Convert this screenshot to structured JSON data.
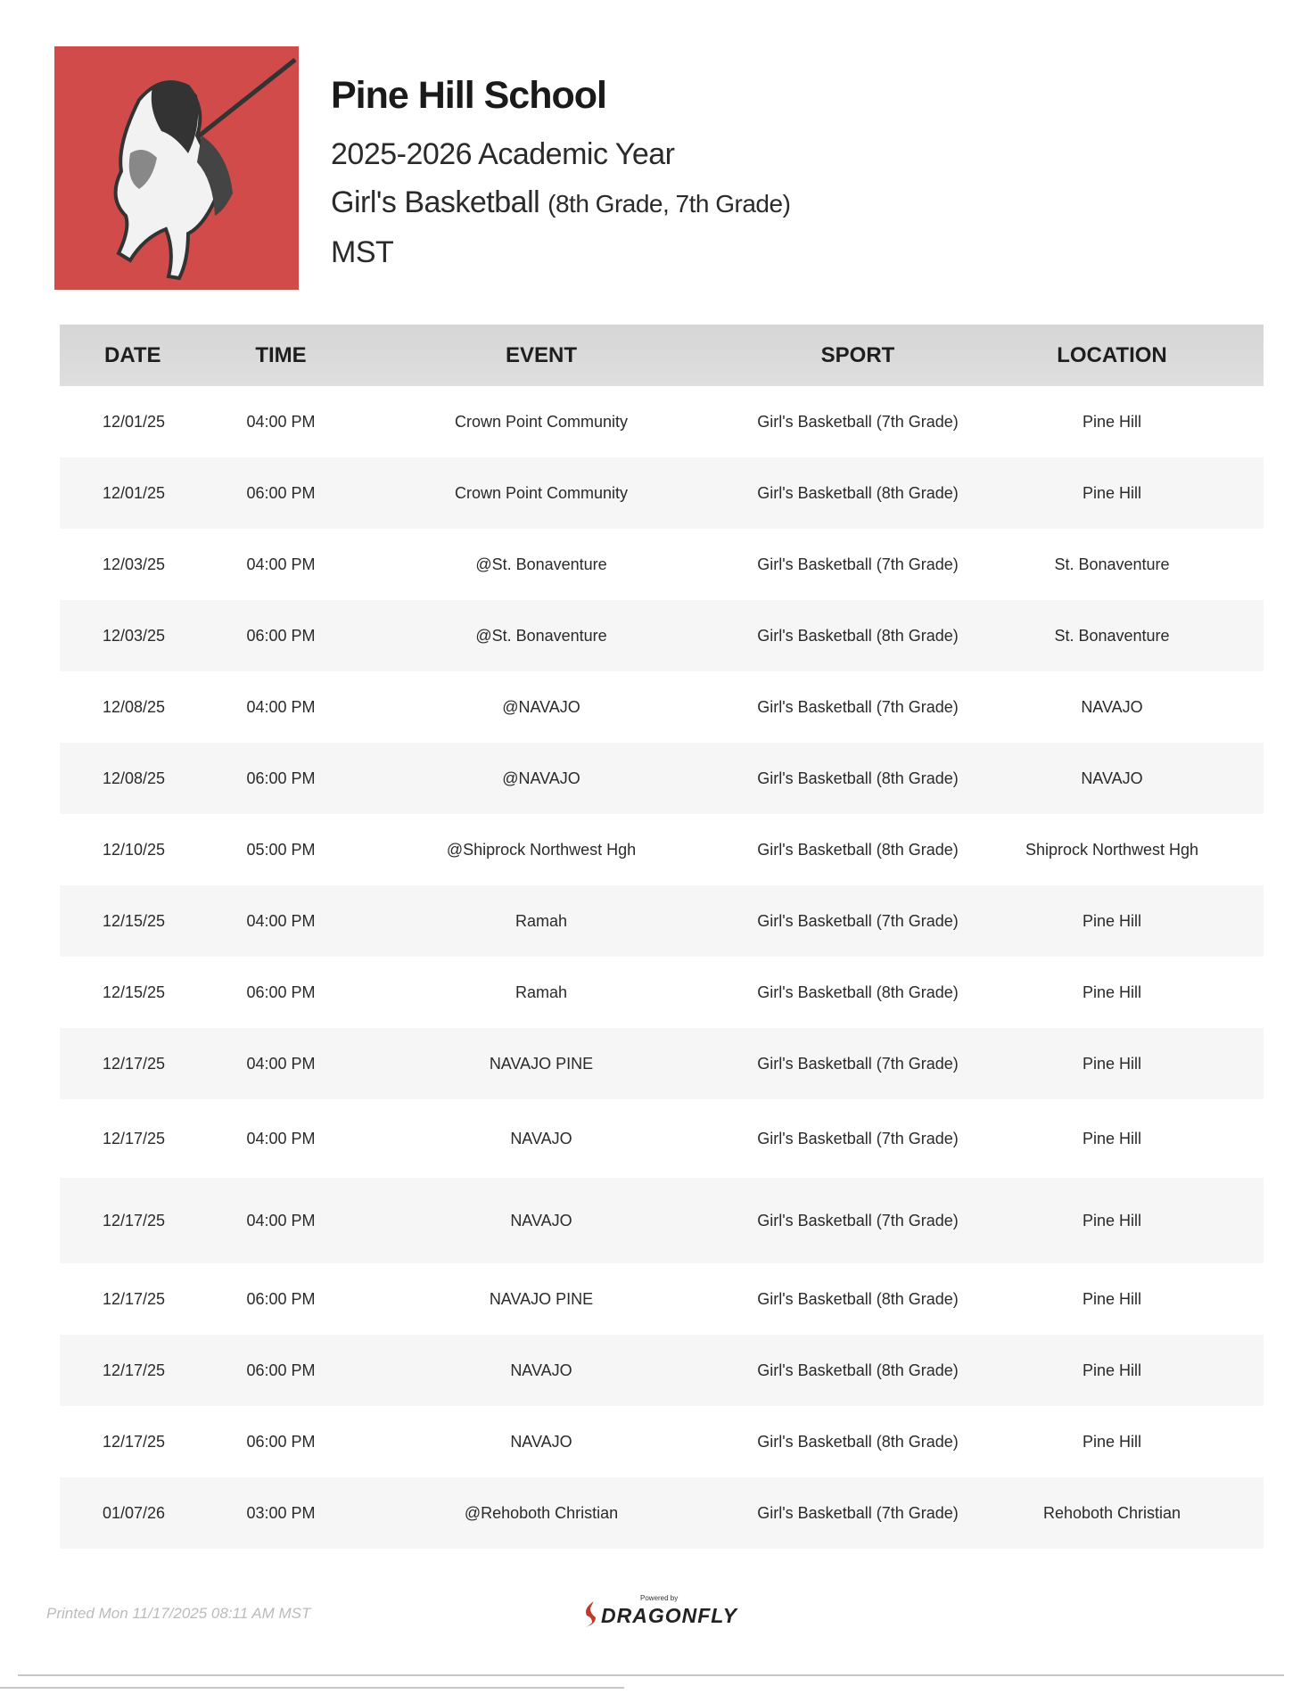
{
  "header": {
    "school": "Pine Hill School",
    "year": "2025-2026 Academic Year",
    "sport": "Girl's Basketball",
    "grades": "(8th Grade, 7th Grade)",
    "timezone": "MST",
    "logo_colors": {
      "background": "#d24b4b"
    }
  },
  "table": {
    "columns": [
      "DATE",
      "TIME",
      "EVENT",
      "SPORT",
      "LOCATION"
    ],
    "rows": [
      {
        "date": "12/01/25",
        "time": "04:00 PM",
        "event": "Crown Point Community",
        "sport": "Girl's Basketball (7th Grade)",
        "location": "Pine Hill"
      },
      {
        "date": "12/01/25",
        "time": "06:00 PM",
        "event": "Crown Point Community",
        "sport": "Girl's Basketball (8th Grade)",
        "location": "Pine Hill"
      },
      {
        "date": "12/03/25",
        "time": "04:00 PM",
        "event": "@St. Bonaventure",
        "sport": "Girl's Basketball (7th Grade)",
        "location": "St. Bonaventure"
      },
      {
        "date": "12/03/25",
        "time": "06:00 PM",
        "event": "@St. Bonaventure",
        "sport": "Girl's Basketball (8th Grade)",
        "location": "St. Bonaventure"
      },
      {
        "date": "12/08/25",
        "time": "04:00 PM",
        "event": "@NAVAJO",
        "sport": "Girl's Basketball (7th Grade)",
        "location": "NAVAJO"
      },
      {
        "date": "12/08/25",
        "time": "06:00 PM",
        "event": "@NAVAJO",
        "sport": "Girl's Basketball (8th Grade)",
        "location": "NAVAJO"
      },
      {
        "date": "12/10/25",
        "time": "05:00 PM",
        "event": "@Shiprock Northwest Hgh",
        "sport": "Girl's Basketball (8th Grade)",
        "location": "Shiprock Northwest Hgh"
      },
      {
        "date": "12/15/25",
        "time": "04:00 PM",
        "event": "Ramah",
        "sport": "Girl's Basketball (7th Grade)",
        "location": "Pine Hill"
      },
      {
        "date": "12/15/25",
        "time": "06:00 PM",
        "event": "Ramah",
        "sport": "Girl's Basketball (8th Grade)",
        "location": "Pine Hill"
      },
      {
        "date": "12/17/25",
        "time": "04:00 PM",
        "event": "NAVAJO PINE",
        "sport": "Girl's Basketball (7th Grade)",
        "location": "Pine Hill"
      },
      {
        "date": "12/17/25",
        "time": "04:00 PM",
        "event": "NAVAJO",
        "sport": "Girl's Basketball (7th Grade)",
        "location": "Pine Hill"
      },
      {
        "date": "12/17/25",
        "time": "04:00 PM",
        "event": "NAVAJO",
        "sport": "Girl's Basketball (7th Grade)",
        "location": "Pine Hill"
      },
      {
        "date": "12/17/25",
        "time": "06:00 PM",
        "event": "NAVAJO PINE",
        "sport": "Girl's Basketball (8th Grade)",
        "location": "Pine Hill"
      },
      {
        "date": "12/17/25",
        "time": "06:00 PM",
        "event": "NAVAJO",
        "sport": "Girl's Basketball (8th Grade)",
        "location": "Pine Hill"
      },
      {
        "date": "12/17/25",
        "time": "06:00 PM",
        "event": "NAVAJO",
        "sport": "Girl's Basketball (8th Grade)",
        "location": "Pine Hill"
      },
      {
        "date": "01/07/26",
        "time": "03:00 PM",
        "event": "@Rehoboth Christian",
        "sport": "Girl's Basketball (7th Grade)",
        "location": "Rehoboth Christian"
      }
    ]
  },
  "footer": {
    "printed": "Printed Mon 11/17/2025 08:11 AM MST",
    "powered_by": "Powered by",
    "brand": "DRAGONFLY",
    "brand_color": "#c0392b"
  }
}
